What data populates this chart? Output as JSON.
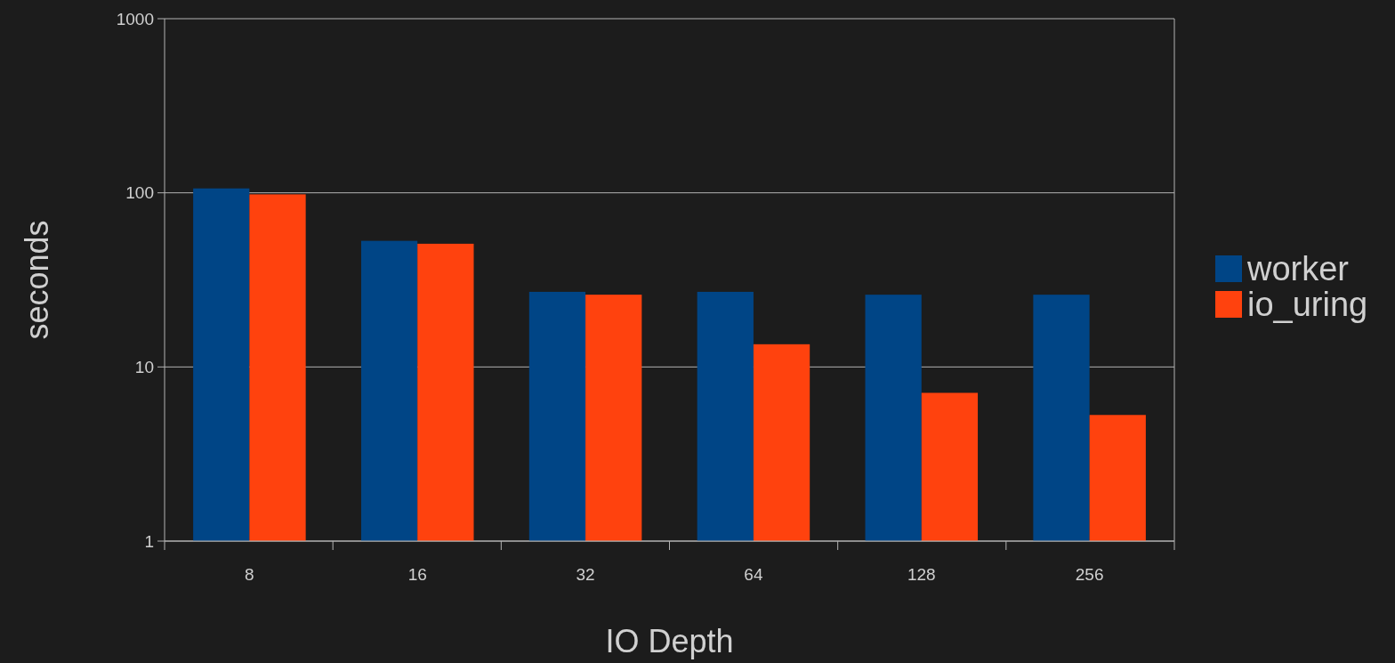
{
  "chart_data": {
    "type": "bar",
    "xlabel": "IO Depth",
    "ylabel": "seconds",
    "categories": [
      "8",
      "16",
      "32",
      "64",
      "128",
      "256"
    ],
    "series": [
      {
        "name": "worker",
        "color": "#004586",
        "values": [
          106,
          53,
          27,
          27,
          26,
          26
        ]
      },
      {
        "name": "io_uring",
        "color": "#ff420e",
        "values": [
          98,
          51,
          26,
          13.5,
          7.1,
          5.3
        ]
      }
    ],
    "log": "y",
    "ylim": [
      1,
      1000
    ],
    "yticks": [
      1,
      10,
      100,
      1000
    ],
    "grid": "y",
    "legend": "right"
  }
}
